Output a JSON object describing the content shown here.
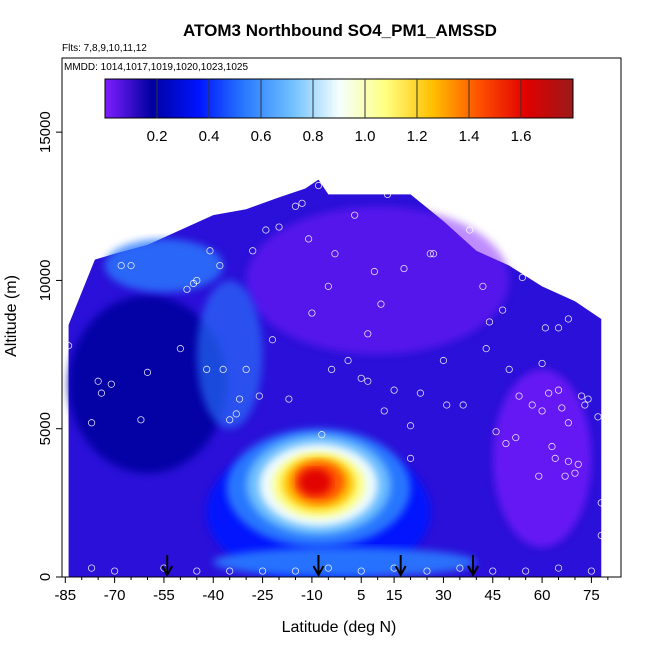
{
  "chart_data": {
    "type": "heatmap",
    "title": "ATOM3 Northbound SO4_PM1_AMSSD",
    "flights_label": "Flts: 7,8,9,10,11,12",
    "dates_label": "MMDD: 1014,1017,1019,1020,1023,1025",
    "xlabel": "Latitude (deg N)",
    "ylabel": "Altitude (m)",
    "xlim": [
      -86,
      84
    ],
    "ylim": [
      0,
      17500
    ],
    "x_ticks": [
      -85,
      -70,
      -55,
      -40,
      -25,
      -10,
      5,
      15,
      30,
      45,
      60,
      75
    ],
    "x_tick_labels": [
      "-85",
      "-70",
      "-55",
      "-40",
      "-25",
      "-10",
      "5",
      "15",
      "30",
      "45",
      "60",
      "75"
    ],
    "y_ticks": [
      0,
      5000,
      10000,
      15000
    ],
    "y_tick_labels": [
      "0",
      "5000",
      "10000",
      "15000"
    ],
    "colorbar": {
      "min": 0.0,
      "max": 1.8,
      "ticks": [
        0.2,
        0.4,
        0.6,
        0.8,
        1.0,
        1.2,
        1.4,
        1.6
      ],
      "tick_labels": [
        "0.2",
        "0.4",
        "0.6",
        "0.8",
        "1.0",
        "1.2",
        "1.4",
        "1.6"
      ],
      "colors": [
        "#7f1fff",
        "#0000a0",
        "#0014ff",
        "#2a7bff",
        "#6fc0ff",
        "#f5ffff",
        "#ffff80",
        "#ffc000",
        "#ff5000",
        "#e00000",
        "#9a1a1a"
      ]
    },
    "coverage": {
      "description": "Altitude extent of data by latitude",
      "lat": [
        -84,
        -76,
        -70,
        -60,
        -50,
        -40,
        -30,
        -20,
        -12,
        -8,
        -5,
        5,
        20,
        30,
        40,
        50,
        60,
        70,
        78
      ],
      "top_altitude": [
        8500,
        10700,
        10900,
        11200,
        11700,
        12200,
        12400,
        12800,
        13100,
        13400,
        12900,
        12900,
        12900,
        12000,
        11000,
        10500,
        9800,
        9300,
        8700
      ]
    },
    "maximum": {
      "lat": -8,
      "altitude": 3200,
      "value": 1.6,
      "extent_lat": [
        -40,
        24
      ],
      "extent_alt": [
        800,
        5200
      ]
    },
    "arrows_lat": [
      -54,
      -8,
      17,
      39
    ],
    "sample_points": [
      [
        -84,
        7800
      ],
      [
        -83,
        10200
      ],
      [
        -77,
        5200
      ],
      [
        -75,
        6600
      ],
      [
        -74,
        6200
      ],
      [
        -71,
        6500
      ],
      [
        -68,
        10500
      ],
      [
        -65,
        10500
      ],
      [
        -62,
        5300
      ],
      [
        -60,
        6900
      ],
      [
        -52,
        11800
      ],
      [
        -50,
        7700
      ],
      [
        -48,
        9700
      ],
      [
        -46,
        9900
      ],
      [
        -45,
        10000
      ],
      [
        -42,
        7000
      ],
      [
        -41,
        11000
      ],
      [
        -38,
        10500
      ],
      [
        -37,
        7000
      ],
      [
        -35,
        5300
      ],
      [
        -33,
        5500
      ],
      [
        -32,
        6000
      ],
      [
        -30,
        7000
      ],
      [
        -28,
        11000
      ],
      [
        -26,
        6100
      ],
      [
        -24,
        11700
      ],
      [
        -22,
        8000
      ],
      [
        -20,
        11800
      ],
      [
        -17,
        6000
      ],
      [
        -15,
        12500
      ],
      [
        -13,
        12600
      ],
      [
        -11,
        11400
      ],
      [
        -10,
        8900
      ],
      [
        -8,
        13200
      ],
      [
        -7,
        4800
      ],
      [
        -5,
        9800
      ],
      [
        -4,
        7000
      ],
      [
        -3,
        10900
      ],
      [
        1,
        7300
      ],
      [
        3,
        12200
      ],
      [
        5,
        6700
      ],
      [
        7,
        8200
      ],
      [
        7,
        6600
      ],
      [
        9,
        10300
      ],
      [
        11,
        9200
      ],
      [
        12,
        5600
      ],
      [
        13,
        12900
      ],
      [
        15,
        6300
      ],
      [
        18,
        10400
      ],
      [
        20,
        4000
      ],
      [
        20,
        5100
      ],
      [
        23,
        6200
      ],
      [
        26,
        10900
      ],
      [
        27,
        10900
      ],
      [
        30,
        7300
      ],
      [
        31,
        5800
      ],
      [
        36,
        5800
      ],
      [
        38,
        11700
      ],
      [
        42,
        9800
      ],
      [
        43,
        7700
      ],
      [
        44,
        8600
      ],
      [
        46,
        4900
      ],
      [
        48,
        9000
      ],
      [
        49,
        4500
      ],
      [
        50,
        7000
      ],
      [
        51,
        12000
      ],
      [
        52,
        4700
      ],
      [
        53,
        6100
      ],
      [
        54,
        10100
      ],
      [
        56,
        10800
      ],
      [
        57,
        5800
      ],
      [
        59,
        3400
      ],
      [
        60,
        5600
      ],
      [
        60,
        7200
      ],
      [
        61,
        8400
      ],
      [
        62,
        6200
      ],
      [
        63,
        4400
      ],
      [
        64,
        4000
      ],
      [
        65,
        6300
      ],
      [
        65,
        8400
      ],
      [
        66,
        5700
      ],
      [
        67,
        3400
      ],
      [
        68,
        5200
      ],
      [
        68,
        3900
      ],
      [
        68,
        8700
      ],
      [
        70,
        3500
      ],
      [
        71,
        3800
      ],
      [
        72,
        6100
      ],
      [
        73,
        5800
      ],
      [
        74,
        6000
      ],
      [
        75,
        9100
      ],
      [
        77,
        5400
      ],
      [
        78,
        2500
      ],
      [
        78,
        1400
      ],
      [
        -77,
        300
      ],
      [
        -70,
        200
      ],
      [
        -55,
        300
      ],
      [
        -45,
        200
      ],
      [
        -35,
        200
      ],
      [
        -25,
        200
      ],
      [
        -15,
        200
      ],
      [
        -5,
        300
      ],
      [
        5,
        200
      ],
      [
        15,
        300
      ],
      [
        25,
        200
      ],
      [
        35,
        300
      ],
      [
        45,
        200
      ],
      [
        55,
        200
      ],
      [
        65,
        300
      ],
      [
        75,
        200
      ]
    ]
  }
}
